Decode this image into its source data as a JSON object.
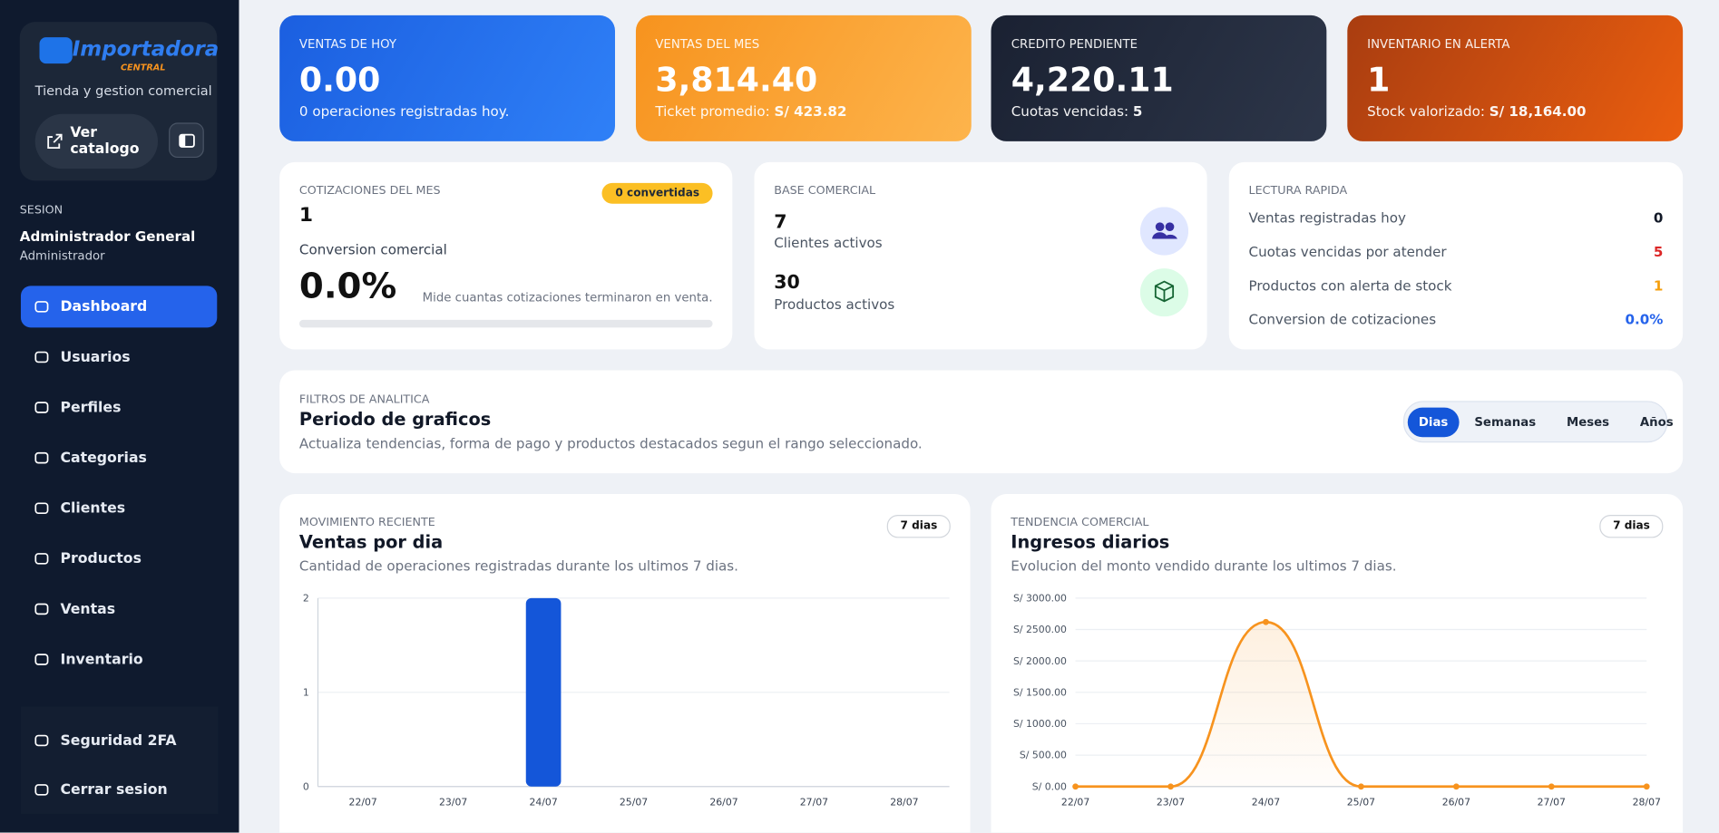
{
  "sidebar": {
    "brand": "Importadora",
    "brand_sub": "CENTRAL",
    "tagline": "Tienda y gestion comercial",
    "catalog_button": "Ver catalogo",
    "session_label": "SESION",
    "user_name": "Administrador General",
    "user_role": "Administrador",
    "menu": [
      "Dashboard",
      "Usuarios",
      "Perfiles",
      "Categorias",
      "Clientes",
      "Productos",
      "Ventas",
      "Inventario"
    ],
    "footer_menu": [
      "Seguridad 2FA",
      "Cerrar sesion"
    ]
  },
  "kpis": [
    {
      "label": "VENTAS DE HOY",
      "value": "0.00",
      "note": "0 operaciones registradas hoy."
    },
    {
      "label": "VENTAS DEL MES",
      "value": "3,814.40",
      "note": "Ticket promedio:",
      "note_value": "S/ 423.82"
    },
    {
      "label": "CREDITO PENDIENTE",
      "value": "4,220.11",
      "note": "Cuotas vencidas:",
      "note_value": "5"
    },
    {
      "label": "INVENTARIO EN ALERTA",
      "value": "1",
      "note": "Stock valorizado:",
      "note_value": "S/ 18,164.00"
    }
  ],
  "quotes": {
    "label": "COTIZACIONES DEL MES",
    "value": "1",
    "badge": "0 convertidas",
    "conversion_label": "Conversion comercial",
    "conversion_value": "0.0%",
    "conversion_note": "Mide cuantas cotizaciones terminaron en venta."
  },
  "base": {
    "label": "BASE COMERCIAL",
    "clients_value": "7",
    "clients_label": "Clientes activos",
    "products_value": "30",
    "products_label": "Productos activos"
  },
  "quick": {
    "label": "LECTURA RAPIDA",
    "rows": [
      [
        "Ventas registradas hoy",
        "0"
      ],
      [
        "Cuotas vencidas por atender",
        "5"
      ],
      [
        "Productos con alerta de stock",
        "1"
      ],
      [
        "Conversion de cotizaciones",
        "0.0%"
      ]
    ]
  },
  "filters": {
    "kicker": "FILTROS DE ANALITICA",
    "title": "Periodo de graficos",
    "subtitle": "Actualiza tendencias, forma de pago y productos destacados segun el rango seleccionado.",
    "options": [
      "Dias",
      "Semanas",
      "Meses",
      "Años"
    ],
    "selected": "Dias"
  },
  "chart_data": [
    {
      "type": "bar",
      "kicker": "MOVIMIENTO RECIENTE",
      "title": "Ventas por dia",
      "subtitle": "Cantidad de operaciones registradas durante los ultimos 7 dias.",
      "badge": "7 dias",
      "categories": [
        "22/07",
        "23/07",
        "24/07",
        "25/07",
        "26/07",
        "27/07",
        "28/07"
      ],
      "values": [
        0,
        0,
        2,
        0,
        0,
        0,
        0
      ],
      "color": "#1456d9",
      "ylim": [
        0,
        2
      ],
      "yticks": [
        0,
        1,
        2
      ],
      "grid": true
    },
    {
      "type": "line",
      "kicker": "TENDENCIA COMERCIAL",
      "title": "Ingresos diarios",
      "subtitle": "Evolucion del monto vendido durante los ultimos 7 dias.",
      "badge": "7 dias",
      "categories": [
        "22/07",
        "23/07",
        "24/07",
        "25/07",
        "26/07",
        "27/07",
        "28/07"
      ],
      "values": [
        0,
        0,
        2620,
        0,
        0,
        0,
        0
      ],
      "color": "#f7931e",
      "ylim": [
        0,
        3000
      ],
      "yticks": [
        {
          "value": 0,
          "label": "S/ 0.00"
        },
        {
          "value": 500,
          "label": "S/ 500.00"
        },
        {
          "value": 1000,
          "label": "S/ 1000.00"
        },
        {
          "value": 1500,
          "label": "S/ 1500.00"
        },
        {
          "value": 2000,
          "label": "S/ 2000.00"
        },
        {
          "value": 2500,
          "label": "S/ 2500.00"
        },
        {
          "value": 3000,
          "label": "S/ 3000.00"
        }
      ],
      "grid": true
    }
  ]
}
